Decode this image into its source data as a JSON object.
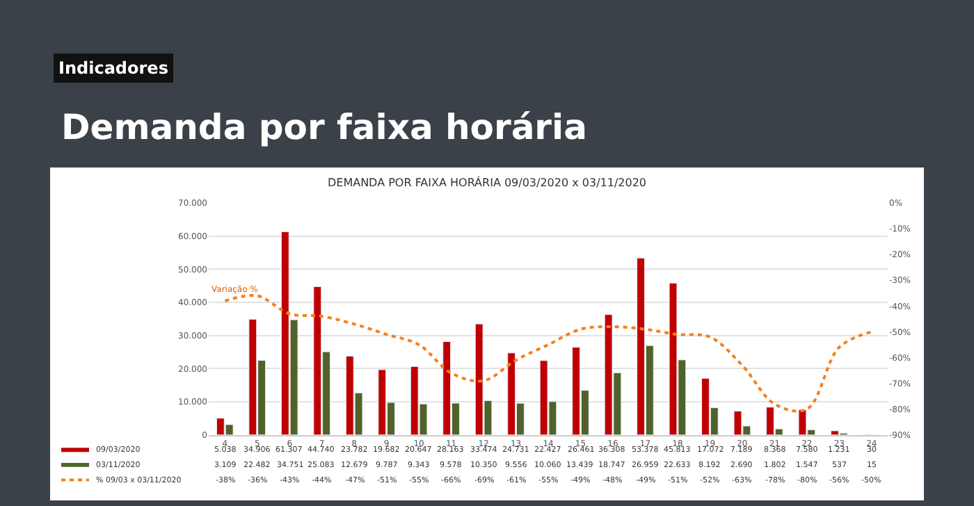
{
  "chart_data": {
    "type": "bar",
    "title": "DEMANDA POR FAIXA HORÁRIA 09/03/2020 x 03/11/2020",
    "annotations": [
      "Indicadores",
      "Demanda por faixa horária",
      "Variação %"
    ],
    "categories": [
      "4",
      "5",
      "6",
      "7",
      "8",
      "9",
      "10",
      "11",
      "12",
      "13",
      "14",
      "15",
      "16",
      "17",
      "18",
      "19",
      "20",
      "21",
      "22",
      "23",
      "24"
    ],
    "series": [
      {
        "name": "09/03/2020",
        "color": "#c00000",
        "values": [
          5038,
          34906,
          61307,
          44740,
          23782,
          19682,
          20647,
          28163,
          33474,
          24731,
          22427,
          26461,
          36308,
          53378,
          45813,
          17072,
          7189,
          8368,
          7580,
          1231,
          30
        ],
        "value_labels": [
          "5.038",
          "34.906",
          "61.307",
          "44.740",
          "23.782",
          "19.682",
          "20.647",
          "28.163",
          "33.474",
          "24.731",
          "22.427",
          "26.461",
          "36.308",
          "53.378",
          "45.813",
          "17.072",
          "7.189",
          "8.368",
          "7.580",
          "1.231",
          "30"
        ]
      },
      {
        "name": "03/11/2020",
        "color": "#4f6228",
        "values": [
          3109,
          22482,
          34751,
          25083,
          12679,
          9787,
          9343,
          9578,
          10350,
          9556,
          10060,
          13439,
          18747,
          26959,
          22633,
          8192,
          2690,
          1802,
          1547,
          537,
          15
        ],
        "value_labels": [
          "3.109",
          "22.482",
          "34.751",
          "25.083",
          "12.679",
          "9.787",
          "9.343",
          "9.578",
          "10.350",
          "9.556",
          "10.060",
          "13.439",
          "18.747",
          "26.959",
          "22.633",
          "8.192",
          "2.690",
          "1.802",
          "1.547",
          "537",
          "15"
        ]
      },
      {
        "name": "% 09/03 x 03/11/2020",
        "type": "line",
        "axis": "y2",
        "line_style": "dotted",
        "marker": "none",
        "color": "#f4801f",
        "values": [
          -38,
          -36,
          -43,
          -44,
          -47,
          -51,
          -55,
          -66,
          -69,
          -61,
          -55,
          -49,
          -48,
          -49,
          -51,
          -52,
          -63,
          -78,
          -80,
          -56,
          -50
        ],
        "value_labels": [
          "-38%",
          "-36%",
          "-43%",
          "-44%",
          "-47%",
          "-51%",
          "-55%",
          "-66%",
          "-69%",
          "-61%",
          "-55%",
          "-49%",
          "-48%",
          "-49%",
          "-51%",
          "-52%",
          "-63%",
          "-78%",
          "-80%",
          "-56%",
          "-50%"
        ]
      }
    ],
    "ylim": [
      0,
      70000
    ],
    "yticks": [
      {
        "value": 0,
        "label": "0"
      },
      {
        "value": 10000,
        "label": "10.000"
      },
      {
        "value": 20000,
        "label": "20.000"
      },
      {
        "value": 30000,
        "label": "30.000"
      },
      {
        "value": 40000,
        "label": "40.000"
      },
      {
        "value": 50000,
        "label": "50.000"
      },
      {
        "value": 60000,
        "label": "60.000"
      },
      {
        "value": 70000,
        "label": "70.000"
      }
    ],
    "y2lim": [
      -90,
      0
    ],
    "y2ticks": [
      {
        "value": 0,
        "label": "0%"
      },
      {
        "value": -10,
        "label": "-10%"
      },
      {
        "value": -20,
        "label": "-20%"
      },
      {
        "value": -30,
        "label": "-30%"
      },
      {
        "value": -40,
        "label": "-40%"
      },
      {
        "value": -50,
        "label": "-50%"
      },
      {
        "value": -60,
        "label": "-60%"
      },
      {
        "value": -70,
        "label": "-70%"
      },
      {
        "value": -80,
        "label": "-80%"
      },
      {
        "value": -90,
        "label": "-90%"
      }
    ],
    "grid": "y",
    "legend": "bottom left"
  }
}
